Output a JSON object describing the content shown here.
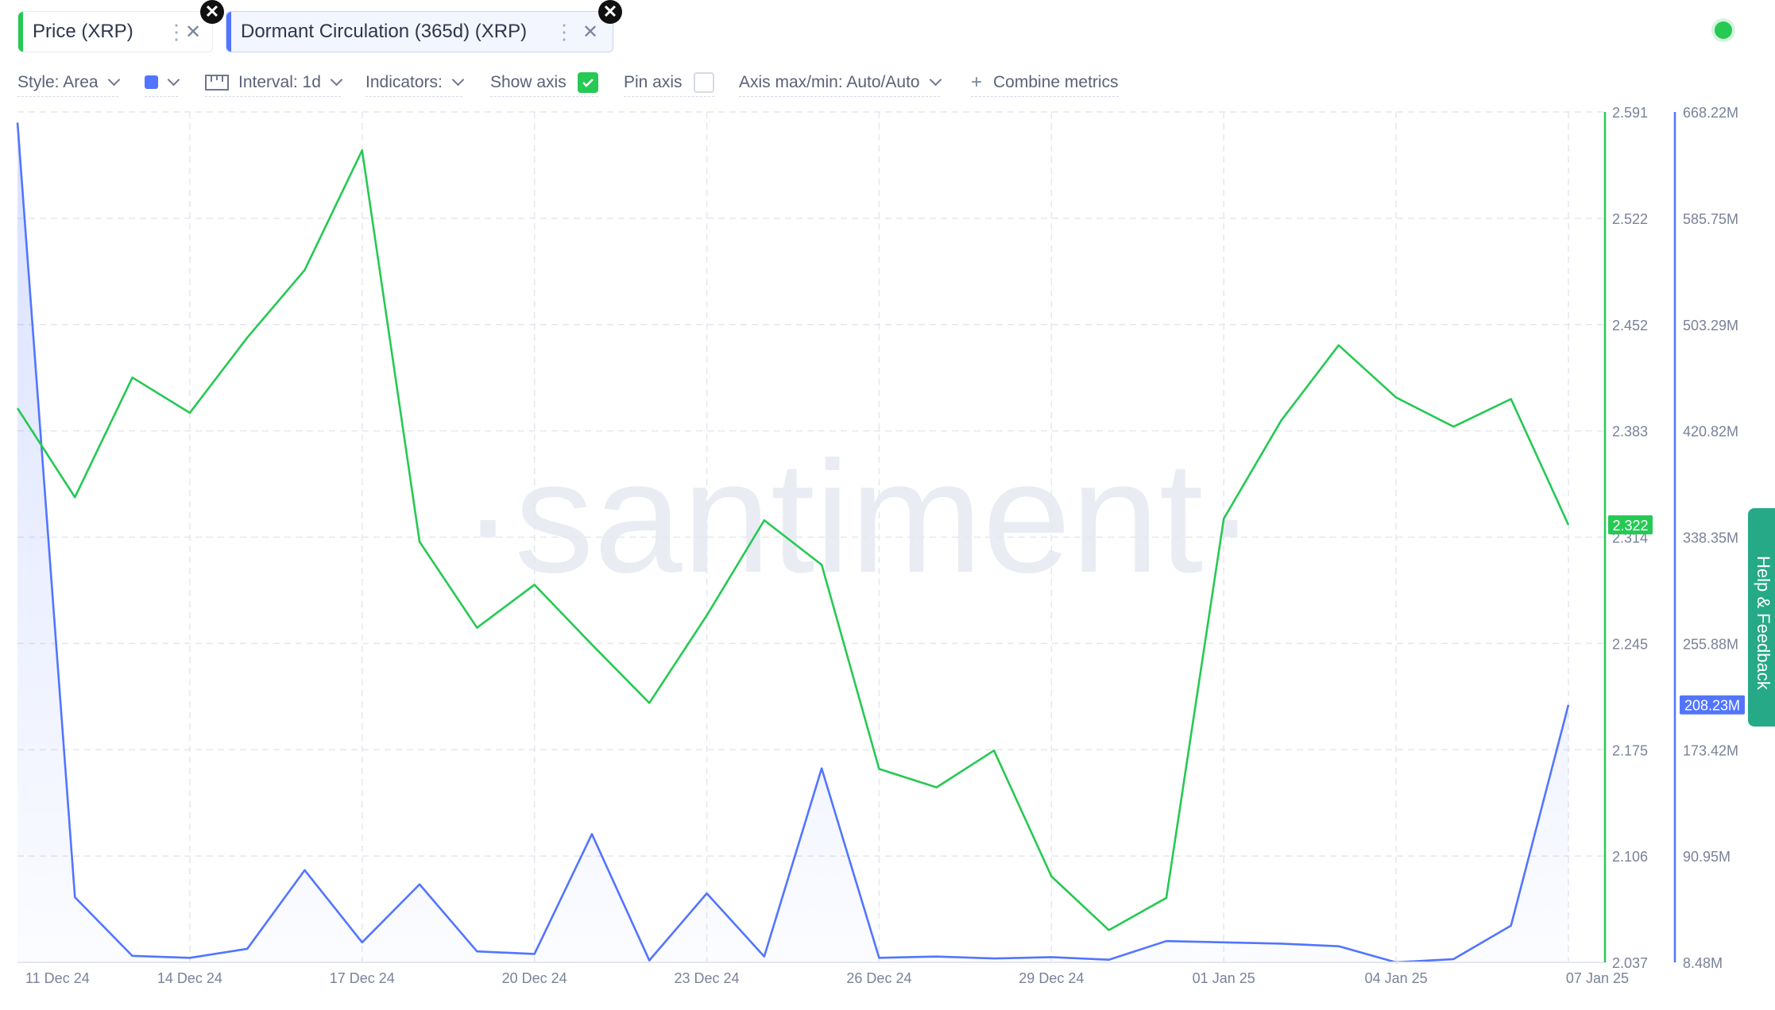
{
  "tabs": [
    {
      "label": "Price (XRP)",
      "color": "#26c953"
    },
    {
      "label": "Dormant Circulation (365d) (XRP)",
      "color": "#5275ff"
    }
  ],
  "toolbar": {
    "style_label": "Style: Area",
    "series_color": "#5275ff",
    "interval_label": "Interval: 1d",
    "indicators_label": "Indicators:",
    "show_axis_label": "Show axis",
    "show_axis_checked": true,
    "pin_axis_label": "Pin axis",
    "pin_axis_checked": false,
    "axis_minmax_label": "Axis max/min: Auto/Auto",
    "combine_label": "Combine metrics"
  },
  "watermark": "·santiment·",
  "help_label": "Help & Feedback",
  "chart_data": {
    "type": "line",
    "x": [
      "11 Dec 24",
      "12 Dec 24",
      "13 Dec 24",
      "14 Dec 24",
      "15 Dec 24",
      "16 Dec 24",
      "17 Dec 24",
      "18 Dec 24",
      "19 Dec 24",
      "20 Dec 24",
      "21 Dec 24",
      "22 Dec 24",
      "23 Dec 24",
      "24 Dec 24",
      "25 Dec 24",
      "26 Dec 24",
      "27 Dec 24",
      "28 Dec 24",
      "29 Dec 24",
      "30 Dec 24",
      "31 Dec 24",
      "01 Jan 25",
      "02 Jan 25",
      "03 Jan 25",
      "04 Jan 25",
      "05 Jan 25",
      "06 Jan 25",
      "07 Jan 25"
    ],
    "x_tick_labels": [
      "11 Dec 24",
      "14 Dec 24",
      "17 Dec 24",
      "20 Dec 24",
      "23 Dec 24",
      "26 Dec 24",
      "29 Dec 24",
      "01 Jan 25",
      "04 Jan 25",
      "07 Jan 25"
    ],
    "series": [
      {
        "name": "Price (XRP)",
        "axis": "left",
        "color": "#26c953",
        "style": "line",
        "values": [
          2.398,
          2.34,
          2.418,
          2.395,
          2.444,
          2.488,
          2.566,
          2.311,
          2.255,
          2.283,
          2.244,
          2.206,
          2.263,
          2.325,
          2.296,
          2.163,
          2.151,
          2.175,
          2.093,
          2.058,
          2.079,
          2.326,
          2.39,
          2.439,
          2.405,
          2.386,
          2.404,
          2.322
        ],
        "last_value_label": "2.322"
      },
      {
        "name": "Dormant Circulation (365d) (XRP)",
        "axis": "right",
        "color": "#5275ff",
        "style": "area",
        "values": [
          660000000,
          59000000,
          13500000,
          12000000,
          19000000,
          80000000,
          24000000,
          69000000,
          17000000,
          15000000,
          108000000,
          10000000,
          62000000,
          13000000,
          159000000,
          12000000,
          13000000,
          11500000,
          12500000,
          10500000,
          25000000,
          24000000,
          23000000,
          21000000,
          8500000,
          11000000,
          37000000,
          208230000
        ],
        "last_value_label": "208.23M"
      }
    ],
    "y_left": {
      "min": 2.037,
      "max": 2.591,
      "tick_labels": [
        "2.591",
        "2.522",
        "2.452",
        "2.383",
        "2.314",
        "2.245",
        "2.175",
        "2.106",
        "2.037"
      ]
    },
    "y_right": {
      "min": 8480000,
      "max": 668220000,
      "tick_labels": [
        "668.22M",
        "585.75M",
        "503.29M",
        "420.82M",
        "338.35M",
        "255.88M",
        "173.42M",
        "90.95M",
        "8.48M"
      ]
    },
    "grid": true
  }
}
